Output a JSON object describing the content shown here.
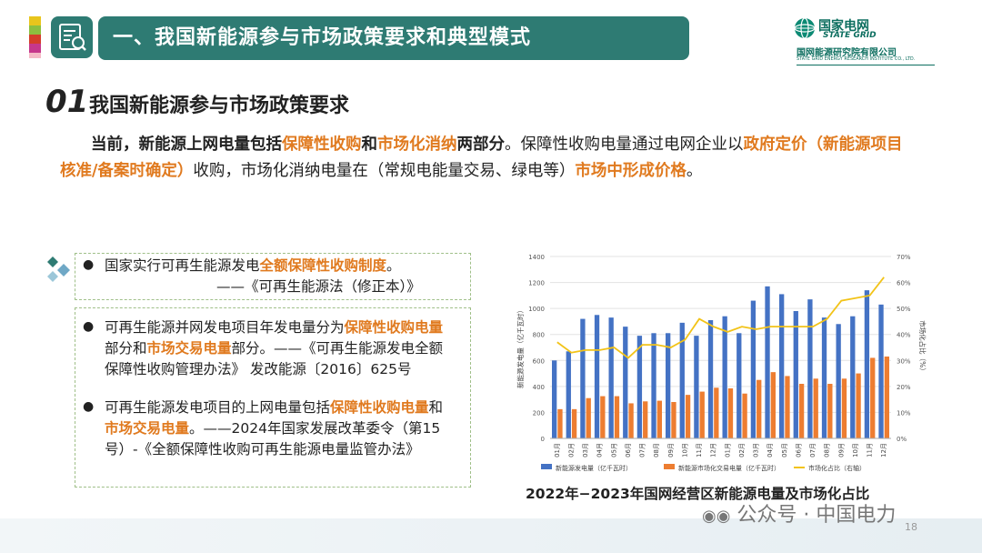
{
  "header": {
    "title": "一、我国新能源参与市场政策要求和典型模式",
    "strip_colors": [
      "#e8c51c",
      "#8cbf3f",
      "#d43d2a",
      "#c6378c",
      "#f5b9c6"
    ]
  },
  "logo": {
    "name_cn": "国家电网",
    "name_en": "STATE GRID",
    "institute_cn": "国网能源研究院有限公司",
    "institute_en": "STATE GRID ENERGY RESEARCH INSTITUTE CO., LTD."
  },
  "section": {
    "number": "01",
    "title": "我国新能源参与市场政策要求"
  },
  "intro": {
    "p1": "当前，新能源上网电量包括",
    "h1": "保障性收购",
    "p2": "和",
    "h2": "市场化消纳",
    "p3": "两部分",
    "p4": "。保障性收购电量通过电网企业以",
    "h3": "政府定价（新能源项目核准/备案时确定）",
    "p5": "收购，市场化消纳电量在（常规电能量交易、绿电等）",
    "h4": "市场中形成价格",
    "p6": "。"
  },
  "box1": {
    "bullet": "●",
    "t1": "国家实行可再生能源发电",
    "h1": "全额保障性收购制度",
    "t2": "。",
    "source": "——《可再生能源法（修正本）》"
  },
  "box2": {
    "bullet": "●",
    "item1": {
      "t1": "可再生能源并网发电项目年发电量分为",
      "h1": "保障性收购电量",
      "t2": "部分和",
      "h2": "市场交易电量",
      "t3": "部分。——《可再生能源发电全额保障性收购管理办法》 发改能源〔2016〕625号"
    },
    "item2": {
      "t1": "可再生能源发电项目的上网电量包括",
      "h1": "保障性收购电量",
      "t2": "和",
      "h2": "市场交易电量",
      "t3": "。——2024年国家发展改革委令（第15号）-《全额保障性收购可再生能源电量监管办法》"
    }
  },
  "chart_data": {
    "type": "bar",
    "title": "2022年−2023年国网经营区新能源电量及市场化占比",
    "categories": [
      "01月",
      "02月",
      "03月",
      "04月",
      "05月",
      "06月",
      "07月",
      "08月",
      "09月",
      "10月",
      "11月",
      "12月",
      "01月",
      "02月",
      "03月",
      "04月",
      "05月",
      "06月",
      "07月",
      "08月",
      "09月",
      "10月",
      "11月",
      "12月"
    ],
    "series": [
      {
        "name": "新能源发电量（亿千瓦时）",
        "color": "#4472c4",
        "axis": "left",
        "values": [
          600,
          670,
          920,
          950,
          930,
          860,
          790,
          810,
          810,
          890,
          790,
          910,
          940,
          810,
          1060,
          1170,
          1110,
          980,
          1070,
          930,
          880,
          940,
          1140,
          1030
        ]
      },
      {
        "name": "新能源市场化交易电量（亿千瓦时）",
        "color": "#ed7d31",
        "axis": "left",
        "values": [
          225,
          225,
          310,
          325,
          325,
          270,
          285,
          290,
          280,
          335,
          360,
          390,
          385,
          345,
          450,
          510,
          480,
          420,
          460,
          420,
          460,
          500,
          620,
          630
        ]
      },
      {
        "name": "市场化占比（右轴）",
        "color": "#f2c318",
        "axis": "right",
        "chart": "line",
        "values": [
          37,
          33,
          34,
          34,
          35,
          31,
          36,
          36,
          35,
          38,
          46,
          43,
          41,
          43,
          42,
          43,
          43,
          43,
          43,
          46,
          53,
          54,
          55,
          62
        ]
      }
    ],
    "ylabel": "新能源发电量（亿千瓦时）",
    "y2label": "市场化占比（%）",
    "ylim": [
      0,
      1400
    ],
    "y2lim": [
      0,
      70
    ],
    "yticks": [
      "0",
      "200",
      "400",
      "600",
      "800",
      "1000",
      "1200",
      "1400"
    ],
    "y2ticks": [
      "0%",
      "10%",
      "20%",
      "30%",
      "40%",
      "50%",
      "60%",
      "70%"
    ],
    "legend": "bottom"
  },
  "footer": {
    "wechat": "公众号 · 中国电力",
    "page_number": "18"
  }
}
